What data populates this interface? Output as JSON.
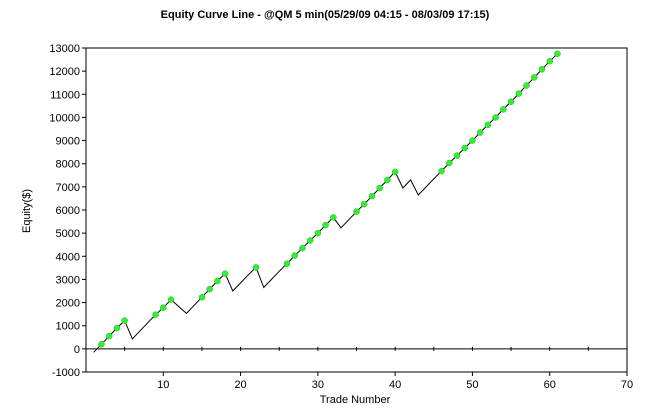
{
  "chart_data": {
    "type": "line",
    "title": "Equity Curve Line - @QM 5 min(05/29/09 04:15 - 08/03/09 17:15)",
    "xlabel": "Trade Number",
    "ylabel": "Equity($)",
    "xlim": [
      0,
      70
    ],
    "ylim": [
      -1000,
      13000
    ],
    "x_ticks": [
      10,
      20,
      30,
      40,
      50,
      60,
      70
    ],
    "y_ticks": [
      -1000,
      0,
      1000,
      2000,
      3000,
      4000,
      5000,
      6000,
      7000,
      8000,
      9000,
      10000,
      11000,
      12000,
      13000
    ],
    "grid": false,
    "legend": "none",
    "colors": {
      "line": "#000000",
      "marker": "#33ee33",
      "axis": "#000000"
    },
    "series": [
      {
        "x": [
          1,
          2,
          3,
          4,
          5,
          6,
          7,
          8,
          9,
          10,
          11,
          12,
          13,
          14,
          15,
          16,
          17,
          18,
          19,
          20,
          21,
          22,
          23,
          24,
          25,
          26,
          27,
          28,
          29,
          30,
          31,
          32,
          33,
          34,
          35,
          36,
          37,
          38,
          39,
          40,
          41,
          42,
          43,
          44,
          45,
          46,
          47,
          48,
          49,
          50,
          51,
          52,
          53,
          54,
          55,
          56,
          57,
          58,
          59,
          60,
          61
        ],
        "y": [
          -150,
          200,
          550,
          900,
          1220,
          430,
          780,
          1130,
          1480,
          1780,
          2130,
          1830,
          1530,
          1880,
          2230,
          2580,
          2930,
          3250,
          2500,
          2850,
          3200,
          3520,
          2650,
          3000,
          3350,
          3680,
          4030,
          4350,
          4680,
          5000,
          5350,
          5680,
          5230,
          5580,
          5930,
          6250,
          6600,
          6950,
          7300,
          7650,
          6950,
          7300,
          6650,
          7000,
          7350,
          7680,
          8030,
          8350,
          8680,
          9000,
          9350,
          9680,
          10000,
          10350,
          10680,
          11030,
          11380,
          11730,
          12080,
          12430,
          12750
        ],
        "markers": [
          false,
          true,
          true,
          true,
          true,
          false,
          false,
          false,
          true,
          true,
          true,
          false,
          false,
          false,
          true,
          true,
          true,
          true,
          false,
          false,
          false,
          true,
          false,
          false,
          false,
          true,
          true,
          true,
          true,
          true,
          true,
          true,
          false,
          false,
          true,
          true,
          true,
          true,
          true,
          true,
          false,
          false,
          false,
          false,
          false,
          true,
          true,
          true,
          true,
          true,
          true,
          true,
          true,
          true,
          true,
          true,
          true,
          true,
          true,
          true,
          true
        ]
      }
    ]
  }
}
